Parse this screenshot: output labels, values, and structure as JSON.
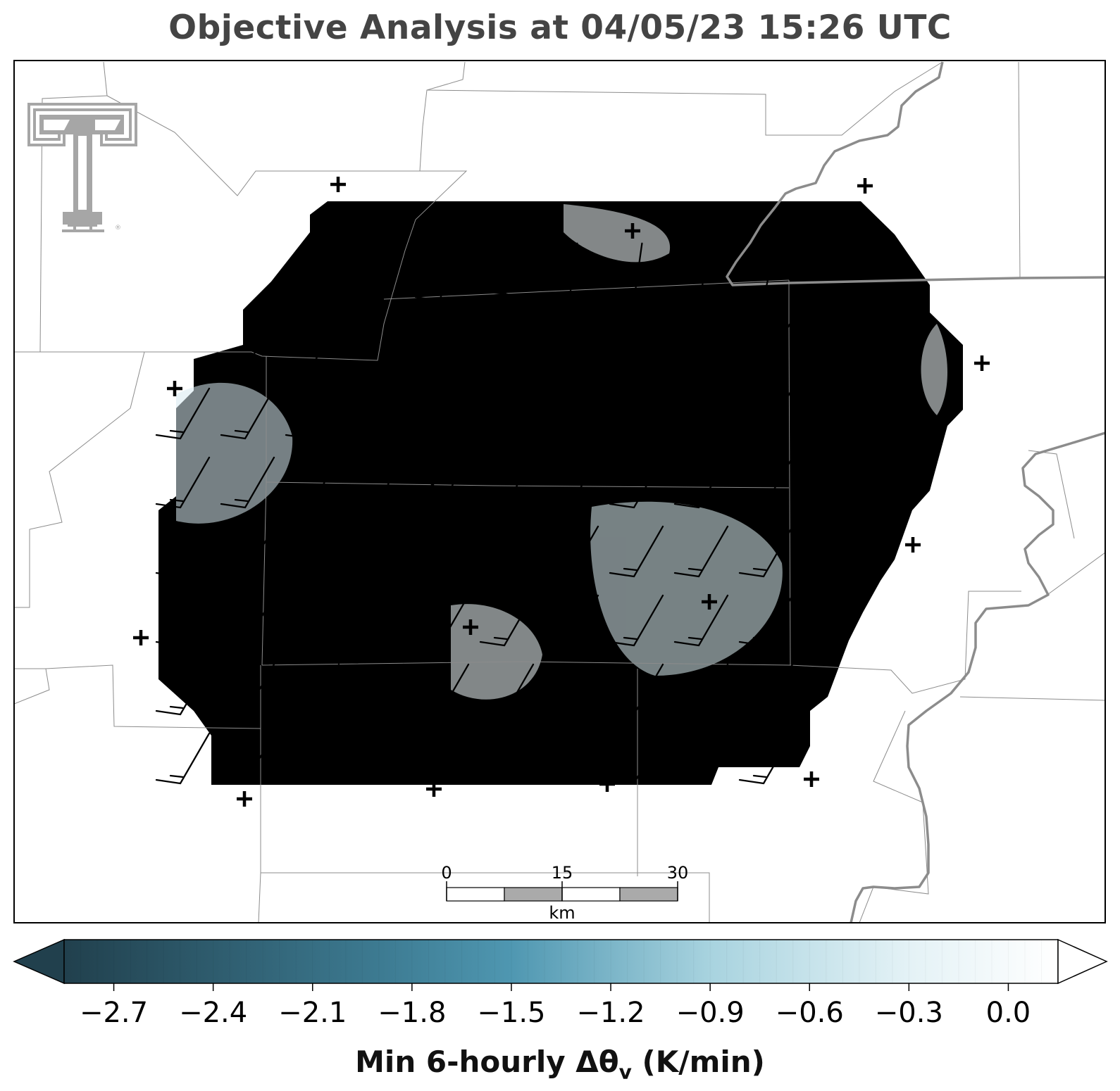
{
  "title": "Objective Analysis at 04/05/23 15:26 UTC",
  "colorbar": {
    "label_main": "Min 6-hourly Δθ",
    "label_sub": "v",
    "label_units": " (K/min)",
    "ticks": [
      "−2.7",
      "−2.4",
      "−2.1",
      "−1.8",
      "−1.5",
      "−1.2",
      "−0.9",
      "−0.6",
      "−0.3",
      "0.0"
    ],
    "tick_values": [
      -2.7,
      -2.4,
      -2.1,
      -1.8,
      -1.5,
      -1.2,
      -0.9,
      -0.6,
      -0.3,
      0.0
    ],
    "range": [
      -2.85,
      0.15
    ],
    "colors": [
      "#21404d",
      "#3d7b92",
      "#4f97b1",
      "#a8d3df",
      "#e4f2f6",
      "#ffffff"
    ]
  },
  "scale_bar": {
    "labels": [
      "0",
      "15",
      "30"
    ],
    "unit": "km"
  },
  "logo": {
    "name": "texas-tech-double-t-logo",
    "color": "#a6a6a6"
  },
  "analysis_fill_color": "#e3f1f5",
  "station_marker": "+",
  "station_count": 18,
  "wind_barb_grid": {
    "rows": 8,
    "cols": 10,
    "direction": "southwest",
    "speed_kt": 15
  }
}
